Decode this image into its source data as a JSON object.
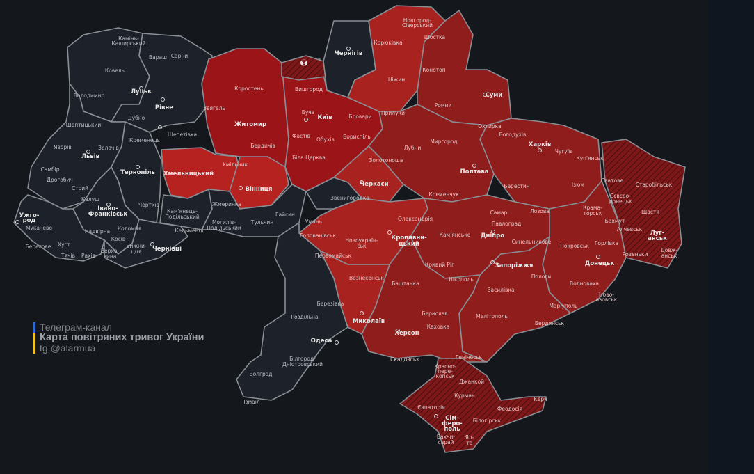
{
  "caption": {
    "line1": "Телеграм-канал",
    "line2": "Карта повітряних тривог України",
    "line3": "tg:@alarmua"
  },
  "colors": {
    "background": "#14171b",
    "no_alert": "#1d212a",
    "alert_oblast_bright": "#b5221f",
    "alert_oblast_dark": "#9a1418",
    "alert_east": "#8e1d1c",
    "border": "#8a8e95",
    "flag_blue": "#2e6bd6",
    "flag_yellow": "#f0c419"
  },
  "regions": [
    {
      "id": "volyn",
      "status": "none"
    },
    {
      "id": "rivne",
      "status": "none"
    },
    {
      "id": "lviv",
      "status": "none"
    },
    {
      "id": "ternopil",
      "status": "none"
    },
    {
      "id": "ivano-frankivsk",
      "status": "none"
    },
    {
      "id": "zakarpattia",
      "status": "none"
    },
    {
      "id": "chernivtsi",
      "status": "none"
    },
    {
      "id": "khmelnytskyi-south",
      "status": "none"
    },
    {
      "id": "khmelnytskyi",
      "status": "alert"
    },
    {
      "id": "zhytomyr",
      "status": "alert"
    },
    {
      "id": "kyiv",
      "status": "alert"
    },
    {
      "id": "chornobyl-zone",
      "status": "hatched"
    },
    {
      "id": "vinnytsia",
      "status": "alert"
    },
    {
      "id": "vinnytsia-south",
      "status": "none"
    },
    {
      "id": "chernihiv-city",
      "status": "none"
    },
    {
      "id": "chernihiv",
      "status": "alert"
    },
    {
      "id": "sumy",
      "status": "alert"
    },
    {
      "id": "kharkiv",
      "status": "alert"
    },
    {
      "id": "luhansk",
      "status": "occupied"
    },
    {
      "id": "donetsk",
      "status": "alert"
    },
    {
      "id": "poltava",
      "status": "alert"
    },
    {
      "id": "cherkasy",
      "status": "alert"
    },
    {
      "id": "cherkasy-west",
      "status": "none"
    },
    {
      "id": "kirovohrad",
      "status": "alert"
    },
    {
      "id": "dnipro",
      "status": "alert"
    },
    {
      "id": "zaporizhzhia",
      "status": "alert"
    },
    {
      "id": "kherson",
      "status": "alert"
    },
    {
      "id": "mykolaiv",
      "status": "alert"
    },
    {
      "id": "odesa",
      "status": "none"
    },
    {
      "id": "crimea",
      "status": "occupied"
    }
  ],
  "labels": {
    "kamin1": "Камінь-",
    "kamin2": "Каширський",
    "varash": "Вараш",
    "sarny": "Сарни",
    "kovel": "Ковель",
    "volodymyr": "Володимир",
    "lutsk": "Луцьк",
    "rivne": "Рівне",
    "dubno": "Дубно",
    "sheptytskyi": "Шептицький",
    "kremenets": "Кременець",
    "shepetivka": "Шепетівка",
    "yavoriv": "Яворів",
    "zolochiv": "Золочів",
    "lviv": "Львів",
    "ternopil": "Тернопіль",
    "sambir": "Самбір",
    "drohobych": "Дрогобич",
    "stryi": "Стрий",
    "kalush": "Калуш",
    "if1": "Івано-",
    "if2": "Франківськ",
    "chortkiv": "Чортків",
    "kp1": "Кам'янець-",
    "kp2": "Подільський",
    "uzh1": "Ужго-",
    "uzh2": "род",
    "mukachevo": "Мукачево",
    "nadvirna": "Надвірна",
    "kolomyia": "Коломия",
    "kosiv": "Косів",
    "berehove": "Берегове",
    "khust": "Хуст",
    "tiachiv": "Тячів",
    "rakhiv": "Рахів",
    "verkh1": "Верхо-",
    "verkh2": "вина",
    "vyzh1": "Вижни-",
    "vyzh2": "цця",
    "chernivtsi": "Чернівці",
    "kelmentsi": "Кельменці",
    "zviahel": "Звягель",
    "korosten": "Коростень",
    "zhytomyr": "Житомир",
    "berdychiv": "Бердичів",
    "khmilnyk": "Хмільник",
    "khmelnytskyi": "Хмельницький",
    "vinnytsia": "Вінниця",
    "zhmerynka": "Жмеринка",
    "mp1": "Могилів-",
    "mp2": "Подільський",
    "tulchyn": "Тульчин",
    "haisyn": "Гайсин",
    "vyshhorod": "Вишгород",
    "bucha": "Буча",
    "kyiv": "Київ",
    "brovary": "Бровари",
    "fastiv": "Фастів",
    "obukhiv": "Обухів",
    "boryspil": "Бориспіль",
    "bilatserkva": "Біла Церква",
    "chernihiv": "Чернігів",
    "koriukivka": "Корюківка",
    "ns1": "Новгород-",
    "ns2": "Сіверський",
    "shostka": "Шостка",
    "konotop": "Конотоп",
    "nizhyn": "Ніжин",
    "pryluky": "Прилуки",
    "romny": "Ромни",
    "sumy": "Суми",
    "okhtyrka": "Охтирка",
    "bohodukhiv": "Богодухів",
    "kharkiv": "Харків",
    "chuhuiv": "Чугуїв",
    "kupiansk": "Куп'янськ",
    "zolotonosha": "Золотоноша",
    "lubny": "Лубни",
    "myrhorod": "Миргород",
    "poltava": "Полтава",
    "cherkasy": "Черкаси",
    "zvenyhorodka": "Звенигородка",
    "uman": "Умань",
    "kremenchuk": "Кременчук",
    "berestyn": "Берестин",
    "izium": "Ізюм",
    "svatove": "Сватове",
    "starobilsk": "Старобільськ",
    "sd1": "Сєвєро-",
    "sd2": "донецьк",
    "shchastia": "Щастя",
    "kr1": "Крама-",
    "kr2": "торськ",
    "bakhmut": "Бахмут",
    "alchevsk": "Алчевськ",
    "lu1": "Луг-",
    "lu2": "анськ",
    "horlivka": "Горлівка",
    "rovenky": "Ровеньки",
    "dov1": "Довж-",
    "dov2": "анськ",
    "donetsk": "Донецьк",
    "pokrovsk": "Покровськ",
    "synelnykove": "Синельникове",
    "lozova": "Лозова",
    "samar": "Самар",
    "pavlohrad": "Павлоград",
    "dnipro": "Дніпро",
    "kamianske": "Кам'янське",
    "oleksandriia": "Олександрія",
    "holovanivsk": "Голованівськ",
    "nu1": "Новоукраїн-",
    "nu2": "ськ",
    "kro1": "Кропивни-",
    "kro2": "цький",
    "pervomaisk": "Первомайськ",
    "kryvyirih": "Кривий Ріг",
    "zaporizhzhia": "Запоріжжя",
    "nikopol": "Нікополь",
    "vasylivka": "Василівка",
    "polohy": "Пологи",
    "volnovakha": "Волноваха",
    "nz1": "Ново-",
    "nz2": "азовськ",
    "mariupol": "Маріуполь",
    "berdiansk": "Бердянськ",
    "melitopol": "Мелітополь",
    "voznesensk": "Вознесенськ",
    "bashtanka": "Баштанка",
    "berezivka": "Березівка",
    "rozdilna": "Роздільна",
    "mykolaiv": "Миколаїв",
    "kherson": "Херсон",
    "beryslav": "Берислав",
    "kakhovka": "Каховка",
    "odesa": "Одеса",
    "skadovsk": "Скадовськ",
    "henichesk": "Генічеськ",
    "bd1": "Білгород-",
    "bd2": "Дністровський",
    "bolhrad": "Болград",
    "izmail": "Ізмаїл",
    "kp_1": "Красно-",
    "kp_2": "пере-",
    "kp_3": "копськ",
    "dzhankoi": "Джанкой",
    "kurman": "Курман",
    "yevpatoriia": "Євпаторія",
    "simf1": "Сім-",
    "simf2": "феро-",
    "simf3": "поль",
    "bilohirsk": "Білогірськ",
    "feodosiia": "Феодосія",
    "kerch": "Керч",
    "bakh1": "Бахчи-",
    "bakh2": "сарай",
    "yalta1": "Ял-",
    "yalta2": "та"
  }
}
